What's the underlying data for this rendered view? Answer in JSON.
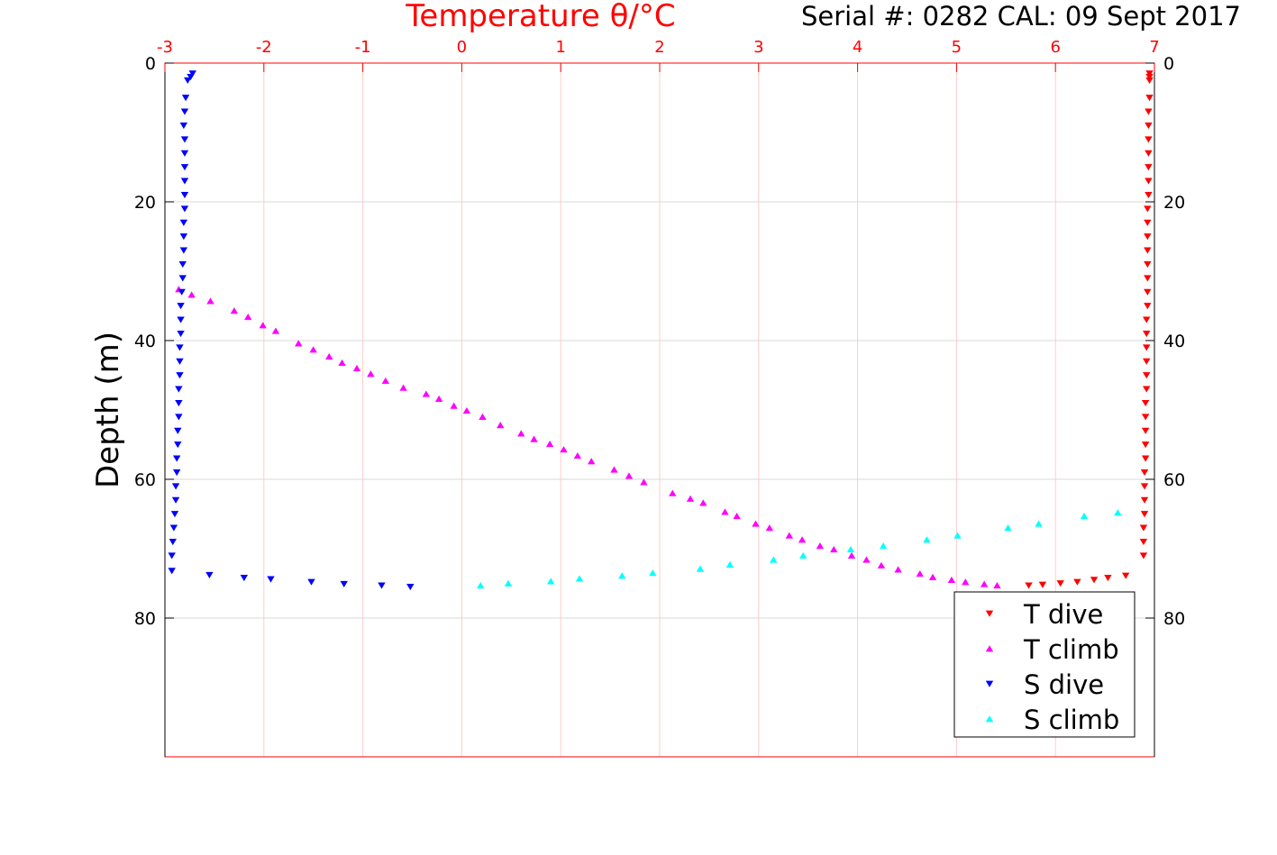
{
  "chart_data": {
    "type": "scatter",
    "title": "Temperature θ/°C",
    "subtitle": "Serial #: 0282  CAL: 09 Sept 2017",
    "xlabel": "Temperature θ/°C",
    "ylabel": "Depth (m)",
    "xlim": [
      -3,
      7
    ],
    "ylim": [
      100,
      0
    ],
    "x_ticks": [
      "-3",
      "-2",
      "-1",
      "0",
      "1",
      "2",
      "3",
      "4",
      "5",
      "6",
      "7"
    ],
    "y_ticks": [
      "0",
      "20",
      "40",
      "60",
      "80"
    ],
    "grid": true,
    "legend_position": "bottom-right",
    "legend": [
      "T dive",
      "T climb",
      "S dive",
      "S climb"
    ],
    "colors": {
      "t_dive": "#ff0000",
      "t_climb": "#ff00ff",
      "s_dive": "#0000ff",
      "s_climb": "#00ffff",
      "axis": "#ff0000"
    },
    "series": [
      {
        "name": "T dive",
        "marker": "down",
        "color": "#ff0000",
        "x": [
          6.95,
          6.95,
          6.95,
          6.95,
          6.94,
          6.94,
          6.94,
          6.94,
          6.94,
          6.94,
          6.94,
          6.93,
          6.93,
          6.93,
          6.93,
          6.93,
          6.93,
          6.93,
          6.93,
          6.92,
          6.92,
          6.92,
          6.92,
          6.92,
          6.92,
          6.91,
          6.91,
          6.91,
          6.91,
          6.91,
          6.9,
          6.9,
          6.9,
          6.9,
          6.89,
          6.89,
          6.89,
          6.71,
          6.53,
          6.39,
          6.22,
          6.05,
          5.87,
          5.73
        ],
        "y": [
          1.5,
          2,
          2.5,
          5,
          7,
          9,
          11,
          13,
          15,
          17,
          19,
          21,
          23,
          25,
          27,
          29,
          31,
          33,
          35,
          37,
          39,
          41,
          43,
          45,
          47,
          49,
          51,
          53,
          55,
          57,
          59,
          61,
          63,
          65,
          67,
          69,
          71,
          73.9,
          74.2,
          74.5,
          74.8,
          75.0,
          75.2,
          75.3
        ]
      },
      {
        "name": "T climb",
        "marker": "up",
        "color": "#ff00ff",
        "x": [
          -2.86,
          -2.73,
          -2.54,
          -2.3,
          -2.16,
          -2.01,
          -1.88,
          -1.65,
          -1.5,
          -1.34,
          -1.21,
          -1.06,
          -0.92,
          -0.77,
          -0.59,
          -0.36,
          -0.23,
          -0.08,
          0.05,
          0.21,
          0.39,
          0.6,
          0.73,
          0.89,
          1.03,
          1.17,
          1.31,
          1.54,
          1.69,
          1.84,
          2.13,
          2.31,
          2.44,
          2.66,
          2.78,
          2.97,
          3.11,
          3.31,
          3.44,
          3.62,
          3.76,
          3.94,
          4.09,
          4.24,
          4.41,
          4.63,
          4.76,
          4.95,
          5.09,
          5.28,
          5.41
        ],
        "y": [
          32.6,
          33.4,
          34.3,
          35.7,
          36.6,
          37.8,
          38.6,
          40.4,
          41.3,
          42.3,
          43.2,
          44.0,
          44.8,
          45.8,
          46.8,
          47.7,
          48.4,
          49.4,
          50.1,
          51.0,
          52.2,
          53.4,
          54.2,
          54.9,
          55.7,
          56.6,
          57.4,
          58.6,
          59.5,
          60.4,
          62.0,
          62.8,
          63.4,
          64.7,
          65.3,
          66.4,
          67.0,
          68.1,
          68.7,
          69.6,
          70.1,
          71.0,
          71.6,
          72.4,
          73.0,
          73.6,
          74.1,
          74.5,
          74.8,
          75.1,
          75.3
        ]
      },
      {
        "name": "S dive",
        "marker": "down",
        "color": "#0000ff",
        "x": [
          -2.72,
          -2.74,
          -2.77,
          -2.79,
          -2.8,
          -2.81,
          -2.8,
          -2.8,
          -2.8,
          -2.8,
          -2.8,
          -2.8,
          -2.81,
          -2.81,
          -2.81,
          -2.82,
          -2.82,
          -2.83,
          -2.84,
          -2.84,
          -2.84,
          -2.85,
          -2.85,
          -2.85,
          -2.86,
          -2.86,
          -2.86,
          -2.87,
          -2.87,
          -2.88,
          -2.88,
          -2.89,
          -2.89,
          -2.9,
          -2.91,
          -2.92,
          -2.93,
          -2.93,
          -2.55,
          -2.2,
          -1.93,
          -1.52,
          -1.19,
          -0.81,
          -0.52
        ],
        "y": [
          1.5,
          2,
          2.5,
          5,
          7,
          9,
          11,
          13,
          15,
          17,
          19,
          21,
          23,
          25,
          27,
          29,
          31,
          33,
          35,
          37,
          39,
          41,
          43,
          45,
          47,
          49,
          51,
          53,
          55,
          57,
          59,
          61,
          63,
          65,
          67,
          69,
          71,
          73.2,
          73.8,
          74.2,
          74.4,
          74.8,
          75.1,
          75.3,
          75.5
        ]
      },
      {
        "name": "S climb",
        "marker": "up",
        "color": "#00ffff",
        "x": [
          0.19,
          0.47,
          0.9,
          1.19,
          1.62,
          1.93,
          2.41,
          2.71,
          3.15,
          3.45,
          3.93,
          4.26,
          4.7,
          5.01,
          5.52,
          5.83,
          6.29,
          6.63
        ],
        "y": [
          75.3,
          75.0,
          74.7,
          74.3,
          73.9,
          73.5,
          72.9,
          72.3,
          71.6,
          71.0,
          70.1,
          69.6,
          68.7,
          68.1,
          67.0,
          66.4,
          65.3,
          64.8
        ]
      }
    ]
  }
}
